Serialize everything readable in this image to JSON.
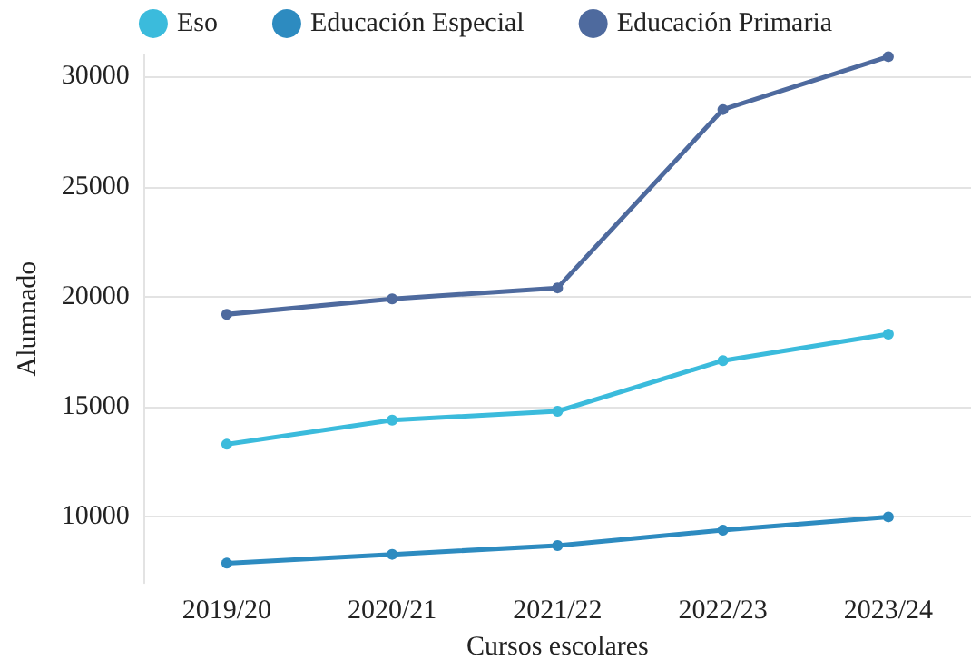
{
  "chart_data": {
    "type": "line",
    "xlabel": "Cursos escolares",
    "ylabel": "Alumnado",
    "categories": [
      "2019/20",
      "2020/21",
      "2021/22",
      "2022/23",
      "2023/24"
    ],
    "series": [
      {
        "name": "Eso",
        "color": "#3bbbdc",
        "values": [
          13300,
          14400,
          14800,
          17100,
          18300
        ]
      },
      {
        "name": "Educación Especial",
        "color": "#2d8bc0",
        "values": [
          7900,
          8300,
          8700,
          9400,
          10000
        ]
      },
      {
        "name": "Educación Primaria",
        "color": "#4e6a9e",
        "values": [
          19200,
          19900,
          20400,
          28500,
          30900
        ]
      }
    ],
    "ylim": [
      7000,
      31000
    ],
    "yticks": [
      10000,
      15000,
      20000,
      25000,
      30000
    ],
    "grid": "y",
    "legend": "top",
    "marker": "circle",
    "line_style": "solid"
  }
}
